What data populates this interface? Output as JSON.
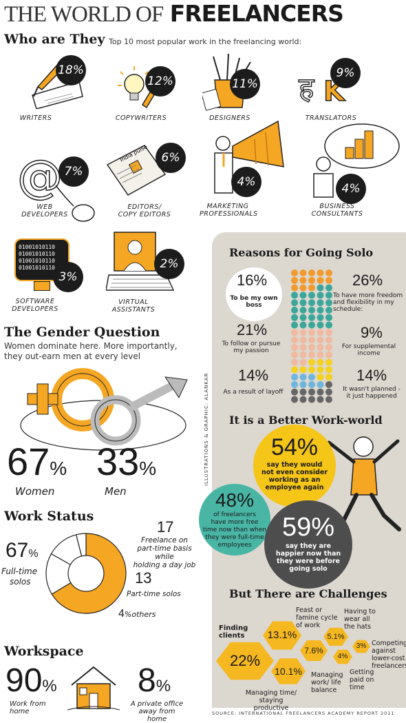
{
  "title": {
    "part1": "THE WORLD OF",
    "part2": "FREELANCERS"
  },
  "who": {
    "heading": "Who are They",
    "subtitle": "Top 10 most popular work in the freelancing world:",
    "items": [
      {
        "label": "WRITERS",
        "pct": "18%"
      },
      {
        "label": "COPYWRITERS",
        "pct": "12%"
      },
      {
        "label": "DESIGNERS",
        "pct": "11%"
      },
      {
        "label": "TRANSLATORS",
        "pct": "9%"
      },
      {
        "label_line1": "WEB",
        "label_line2": "DEVELOPERS",
        "pct": "7%"
      },
      {
        "label_line1": "EDITORS/",
        "label_line2": "COPY EDITORS",
        "pct": "6%"
      },
      {
        "label_line1": "MARKETING",
        "label_line2": "PROFESSIONALS",
        "pct": "4%"
      },
      {
        "label_line1": "BUSINESS",
        "label_line2": "CONSULTANTS",
        "pct": "4%"
      },
      {
        "label_line1": "SOFTWARE",
        "label_line2": "DEVELOPERS",
        "pct": "3%"
      },
      {
        "label_line1": "VIRTUAL",
        "label_line2": "ASSISTANTS",
        "pct": "2%"
      }
    ],
    "binary_text": [
      "01001010110",
      "01001010110",
      "01001010110",
      "01001010110"
    ],
    "newspaper_text": "India pulse"
  },
  "gender": {
    "heading": "The Gender Question",
    "line1": "Women dominate here. More importantly,",
    "line2": "they out-earn men at every level",
    "women_pct": "67",
    "women_label": "Women",
    "men_pct": "33",
    "men_label": "Men",
    "pct_sign": "%"
  },
  "work_status": {
    "heading": "Work Status",
    "chart_data": {
      "type": "pie",
      "categories": [
        "Full-time solos",
        "Freelance on part-time basis while holding a day job",
        "Part-time solos",
        "others"
      ],
      "values": [
        67,
        17,
        13,
        4
      ]
    },
    "fulltime_pct": "67",
    "fulltime_label1": "Full-time",
    "fulltime_label2": "solos",
    "parttime_job_pct": "17",
    "parttime_job_l1": "Freelance on",
    "parttime_job_l2": "part-time basis while",
    "parttime_job_l3": "holding a day job",
    "parttime_pct": "13",
    "parttime_label": "Part-time solos",
    "others_pct": "4",
    "others_label": "others",
    "pct_sign": "%"
  },
  "workspace": {
    "heading": "Workspace",
    "home_pct": "90",
    "home_l1": "Work from",
    "home_l2": "home",
    "office_pct": "8",
    "office_l1": "A private office",
    "office_l2": "away from home",
    "pct_sign": "%"
  },
  "reasons": {
    "heading": "Reasons for Going Solo",
    "r1_pct": "16%",
    "r1_l1": "To be my own",
    "r1_l2": "boss",
    "r2_pct": "26%",
    "r2_l1": "To have more freedom",
    "r2_l2": "and flexibility in my",
    "r2_l3": "schedule:",
    "r3_pct": "21%",
    "r3_l1": "To follow or pursue",
    "r3_l2": "my passion",
    "r4_pct": "9%",
    "r4_l1": "For supplemental",
    "r4_l2": "income",
    "r5_pct": "14%",
    "r5_l1": "As a result of layoff",
    "r6_pct": "14%",
    "r6_l1": "It wasn't planned -",
    "r6_l2": "it just happened",
    "dot_colors": {
      "boss": "#f29a2e",
      "freedom": "#3aa79a",
      "passion": "#f0b9a0",
      "income": "#f5d21e",
      "layoff": "#6db6e0",
      "unplanned": "#666666"
    }
  },
  "better": {
    "heading": "It is a Better Work-world",
    "b1_pct": "54%",
    "b1_l1": "say they would",
    "b1_l2": "not even consider",
    "b1_l3": "working as an",
    "b1_l4": "employee again",
    "b2_pct": "48%",
    "b2_l1": "of freelancers",
    "b2_l2": "have more free",
    "b2_l3": "time now than when",
    "b2_l4": "they were full-time",
    "b2_l5": "employees",
    "b3_pct": "59%",
    "b3_l1": "say they are",
    "b3_l2": "happier now than",
    "b3_l3": "they were before",
    "b3_l4": "going solo"
  },
  "challenges": {
    "heading": "But There are Challenges",
    "c1_pct": "22%",
    "c1_l1": "Finding",
    "c1_l2": "clients",
    "c2_pct": "13.1%",
    "c2_l1": "Feast or",
    "c2_l2": "famine cycle",
    "c2_l3": "of work",
    "c3_pct": "10.1%",
    "c3_l1": "Managing time/",
    "c3_l2": "staying productive",
    "c4_pct": "7.6%",
    "c4_l1": "Managing",
    "c4_l2": "work/ life",
    "c4_l3": "balance",
    "c5_pct": "5.1%",
    "c5_l1": "Having to",
    "c5_l2": "wear all",
    "c5_l3": "the hats",
    "c6_pct": "4%",
    "c6_l1": "Getting",
    "c6_l2": "paid on",
    "c6_l3": "time",
    "c7_pct": "3%",
    "c7_l1": "Competing",
    "c7_l2": "against",
    "c7_l3": "lower-cost",
    "c7_l4": "freelancers"
  },
  "credits": {
    "illustrations": "ILLUSTRATIONS & GRAPHIC: ALANKAR",
    "source": "SOURCE: INTERNATIONAL FREELANCERS ACADEMY REPORT 2011"
  },
  "colors": {
    "accent": "#f5a623",
    "dark": "#1c1c1c",
    "panel": "#dcd7cf",
    "teal": "#48b5a5",
    "yellow": "#f5c518",
    "grey": "#4d4d4d"
  }
}
